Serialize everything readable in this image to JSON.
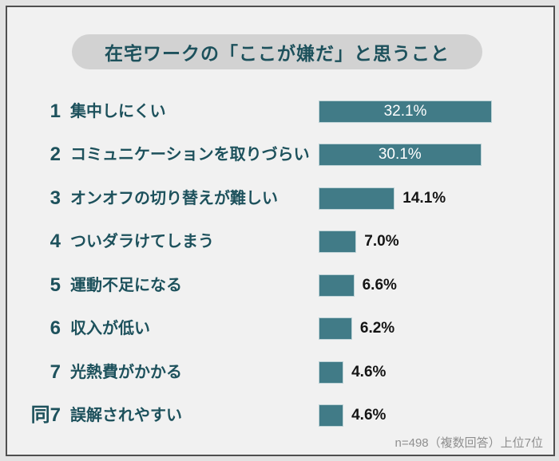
{
  "page": {
    "title": "在宅ワークの「ここが嫌だ」と思うこと",
    "footnote": "n=498（複数回答）上位7位"
  },
  "colors": {
    "bar": "#417b87",
    "bar_border": "#bdd2d6",
    "title_text": "#1d515c",
    "pill_bg": "#d2d2d2",
    "frame_border": "#4f4f4f",
    "content_bg": "#f1f1f1",
    "outer_bg": "#e3e3e3",
    "value_inside": "#ffffff",
    "value_outside": "#141414",
    "footnote_text": "#8f8f8f"
  },
  "chart_data": {
    "type": "bar",
    "orientation": "horizontal",
    "title": "在宅ワークの「ここが嫌だ」と思うこと",
    "note": "n=498（複数回答）上位7位",
    "value_unit": "%",
    "xlim": [
      0,
      35
    ],
    "grid": false,
    "legend": false,
    "categories": [
      "集中しにくい",
      "コミュニケーションを取りづらい",
      "オンオフの切り替えが難しい",
      "ついダラけてしまう",
      "運動不足になる",
      "収入が低い",
      "光熱費がかかる",
      "誤解されやすい"
    ],
    "values": [
      32.1,
      30.1,
      14.1,
      7.0,
      6.6,
      6.2,
      4.6,
      4.6
    ],
    "rows": [
      {
        "rank": "1",
        "label": "集中しにくい",
        "value": 32.1,
        "value_label": "32.1%",
        "value_position": "inside"
      },
      {
        "rank": "2",
        "label": "コミュニケーションを取りづらい",
        "value": 30.1,
        "value_label": "30.1%",
        "value_position": "inside"
      },
      {
        "rank": "3",
        "label": "オンオフの切り替えが難しい",
        "value": 14.1,
        "value_label": "14.1%",
        "value_position": "outside"
      },
      {
        "rank": "4",
        "label": "ついダラけてしまう",
        "value": 7.0,
        "value_label": "7.0%",
        "value_position": "outside"
      },
      {
        "rank": "5",
        "label": "運動不足になる",
        "value": 6.6,
        "value_label": "6.6%",
        "value_position": "outside"
      },
      {
        "rank": "6",
        "label": "収入が低い",
        "value": 6.2,
        "value_label": "6.2%",
        "value_position": "outside"
      },
      {
        "rank": "7",
        "label": "光熱費がかかる",
        "value": 4.6,
        "value_label": "4.6%",
        "value_position": "outside"
      },
      {
        "rank": "同7",
        "label": "誤解されやすい",
        "value": 4.6,
        "value_label": "4.6%",
        "value_position": "outside"
      }
    ]
  }
}
